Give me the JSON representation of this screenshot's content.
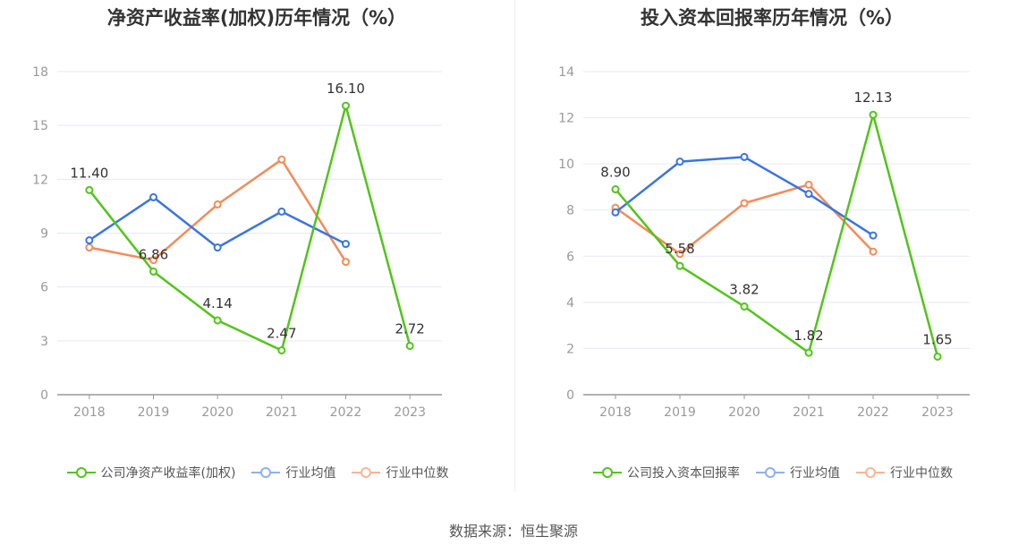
{
  "charts": [
    {
      "title": "净资产收益率(加权)历年情况（%）",
      "legend": [
        "公司净资产收益率(加权)",
        "行业均值",
        "行业中位数"
      ]
    },
    {
      "title": "投入资本回报率历年情况（%）",
      "legend": [
        "公司投入资本回报率",
        "行业均值",
        "行业中位数"
      ]
    }
  ],
  "source": "数据来源：恒生聚源",
  "colors": {
    "company": "#52c41a",
    "mean": "#3b74e0",
    "median": "#f28c5a",
    "grid": "#e6e9f2",
    "axis": "#999999"
  },
  "chart_data": [
    {
      "type": "line",
      "title": "净资产收益率(加权)历年情况（%）",
      "categories": [
        "2018",
        "2019",
        "2020",
        "2021",
        "2022",
        "2023"
      ],
      "ylim": [
        0,
        18
      ],
      "yticks": [
        0,
        3,
        6,
        9,
        12,
        15,
        18
      ],
      "grid": true,
      "legend_position": "bottom",
      "series": [
        {
          "name": "公司净资产收益率(加权)",
          "role": "company",
          "values": [
            11.4,
            6.86,
            4.14,
            2.47,
            16.1,
            2.72
          ],
          "labels": [
            "11.40",
            "6.86",
            "4.14",
            "2.47",
            "16.10",
            "2.72"
          ]
        },
        {
          "name": "行业均值",
          "role": "mean",
          "values": [
            8.6,
            11.0,
            8.2,
            10.2,
            8.4,
            null
          ]
        },
        {
          "name": "行业中位数",
          "role": "median",
          "values": [
            8.2,
            7.5,
            10.6,
            13.1,
            7.4,
            null
          ]
        }
      ]
    },
    {
      "type": "line",
      "title": "投入资本回报率历年情况（%）",
      "categories": [
        "2018",
        "2019",
        "2020",
        "2021",
        "2022",
        "2023"
      ],
      "ylim": [
        0,
        14
      ],
      "yticks": [
        0,
        2,
        4,
        6,
        8,
        10,
        12,
        14
      ],
      "grid": true,
      "legend_position": "bottom",
      "series": [
        {
          "name": "公司投入资本回报率",
          "role": "company",
          "values": [
            8.9,
            5.58,
            3.82,
            1.82,
            12.13,
            1.65
          ],
          "labels": [
            "8.90",
            "5.58",
            "3.82",
            "1.82",
            "12.13",
            "1.65"
          ]
        },
        {
          "name": "行业均值",
          "role": "mean",
          "values": [
            7.9,
            10.1,
            10.3,
            8.7,
            6.9,
            null
          ]
        },
        {
          "name": "行业中位数",
          "role": "median",
          "values": [
            8.1,
            6.1,
            8.3,
            9.1,
            6.2,
            null
          ]
        }
      ]
    }
  ]
}
